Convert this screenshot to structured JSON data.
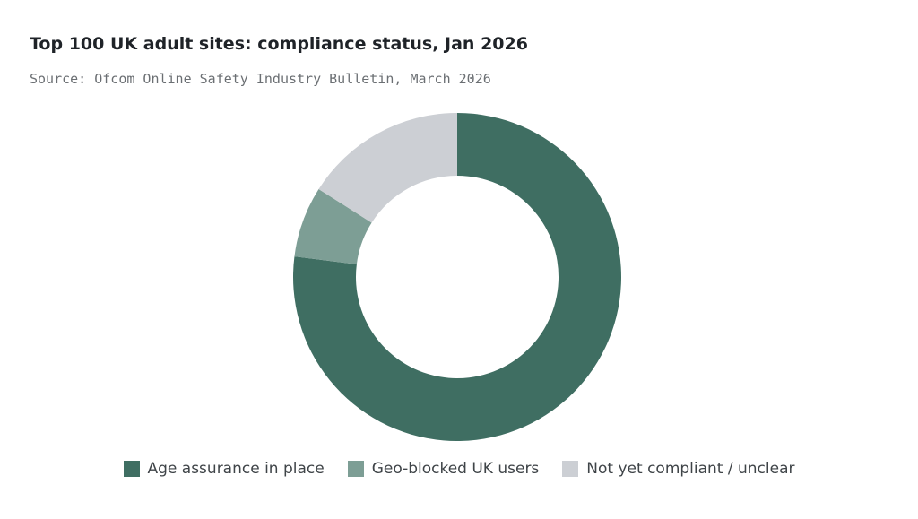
{
  "chart_data": {
    "type": "pie",
    "title": "Top 100 UK adult sites: compliance status, Jan 2026",
    "subtitle": "Source: Ofcom Online Safety Industry Bulletin, March 2026",
    "categories": [
      "Age assurance in place",
      "Geo-blocked UK users",
      "Not yet compliant / unclear"
    ],
    "values": [
      77,
      7,
      16
    ],
    "colors": [
      "#3f6e62",
      "#7d9e95",
      "#cccfd4"
    ],
    "donut": true,
    "legend_position": "bottom"
  }
}
